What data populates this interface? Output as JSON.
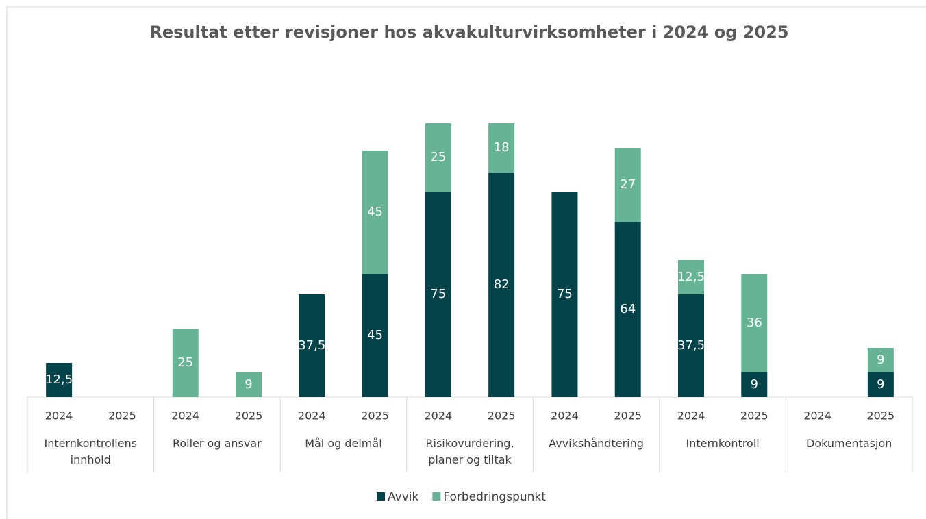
{
  "chart_data": {
    "type": "stacked_bar",
    "title": "Resultat etter revisjoner hos akvakulturvirksomheter i 2024 og 2025",
    "categories": [
      "2024",
      "2025",
      "2024",
      "2025",
      "2024",
      "2025",
      "2024",
      "2025",
      "2024",
      "2025",
      "2024",
      "2025",
      "2024",
      "2025"
    ],
    "groups": [
      "Internkontrollens innhold",
      "Roller og ansvar",
      "Mål og delmål",
      "Risikovurdering, planer og tiltak",
      "Avvikshåndtering",
      "Internkontroll",
      "Dokumentasjon"
    ],
    "series": [
      {
        "name": "Avvik",
        "color": "#05434a",
        "values": [
          12.5,
          null,
          null,
          null,
          37.5,
          45,
          75,
          82,
          75,
          64,
          37.5,
          9,
          null,
          9
        ],
        "value_labels": [
          "12,5",
          null,
          null,
          null,
          "37,5",
          "45",
          "75",
          "82",
          "75",
          "64",
          "37,5",
          "9",
          null,
          "9"
        ]
      },
      {
        "name": "Forbedringspunkt",
        "color": "#67b396",
        "values": [
          null,
          null,
          25,
          9,
          null,
          45,
          25,
          18,
          null,
          27,
          12.5,
          36,
          null,
          9
        ],
        "value_labels": [
          null,
          null,
          "25",
          "9",
          null,
          "45",
          "25",
          "18",
          null,
          "27",
          "12,5",
          "36",
          null,
          "9"
        ]
      }
    ],
    "ylim": [
      0,
      100
    ]
  }
}
